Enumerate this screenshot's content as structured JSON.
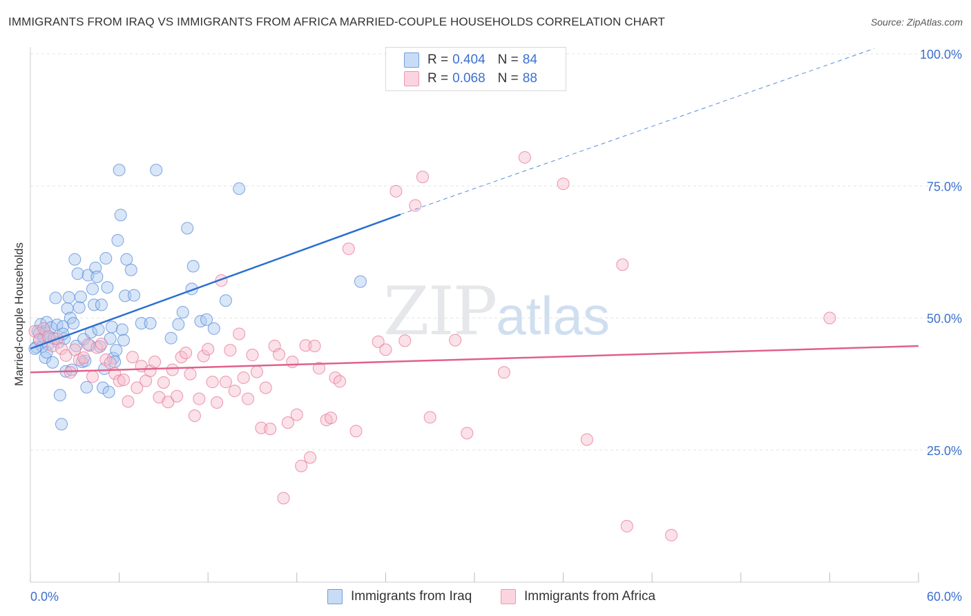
{
  "title": "IMMIGRANTS FROM IRAQ VS IMMIGRANTS FROM AFRICA MARRIED-COUPLE HOUSEHOLDS CORRELATION CHART",
  "source": "Source: ZipAtlas.com",
  "watermark": {
    "zip": "ZIP",
    "atlas": "atlas"
  },
  "legend": {
    "rows": [
      {
        "r_label": "R =",
        "r_value": "0.404",
        "n_label": "N =",
        "n_value": "84",
        "color": "#a9c8f0"
      },
      {
        "r_label": "R =",
        "r_value": "0.068",
        "n_label": "N =",
        "n_value": "88",
        "color": "#f7bccd"
      }
    ]
  },
  "chart_data": {
    "type": "scatter",
    "title": "IMMIGRANTS FROM IRAQ VS IMMIGRANTS FROM AFRICA MARRIED-COUPLE HOUSEHOLDS CORRELATION CHART",
    "xlabel": "",
    "ylabel": "Married-couple Households",
    "xlim": [
      0,
      60
    ],
    "ylim": [
      0,
      100
    ],
    "x_tick_labels": [
      "0.0%",
      "60.0%"
    ],
    "y_tick_labels": [
      "25.0%",
      "50.0%",
      "75.0%",
      "100.0%"
    ],
    "y_ticks": [
      25,
      50,
      75,
      100
    ],
    "grid": true,
    "series": [
      {
        "name": "Immigrants from Iraq",
        "color": "#5b8fd9",
        "fill": "#a9c8f0",
        "trend": {
          "x": [
            0,
            25
          ],
          "y": [
            44.2,
            69.6
          ],
          "dashed_to": {
            "x": 57,
            "y": 101.0
          },
          "color": "#2a6fd1"
        },
        "points": [
          [
            0.4,
            44.5
          ],
          [
            0.5,
            47.5
          ],
          [
            0.6,
            45.8
          ],
          [
            0.7,
            48.8
          ],
          [
            0.8,
            44.6
          ],
          [
            0.9,
            46.4
          ],
          [
            1.0,
            47.5
          ],
          [
            1.0,
            42.5
          ],
          [
            1.1,
            49.2
          ],
          [
            1.2,
            45.0
          ],
          [
            1.3,
            46.4
          ],
          [
            1.4,
            48.2
          ],
          [
            1.5,
            41.6
          ],
          [
            1.6,
            46.1
          ],
          [
            1.7,
            53.8
          ],
          [
            1.8,
            48.7
          ],
          [
            1.9,
            45.4
          ],
          [
            2.0,
            35.4
          ],
          [
            2.1,
            29.9
          ],
          [
            2.2,
            48.4
          ],
          [
            2.3,
            46.1
          ],
          [
            2.4,
            39.9
          ],
          [
            2.5,
            51.8
          ],
          [
            2.6,
            53.9
          ],
          [
            2.7,
            50.0
          ],
          [
            2.8,
            40.2
          ],
          [
            2.9,
            49.0
          ],
          [
            3.0,
            61.1
          ],
          [
            3.1,
            44.7
          ],
          [
            3.2,
            58.4
          ],
          [
            3.3,
            52.0
          ],
          [
            3.4,
            54.0
          ],
          [
            3.5,
            41.7
          ],
          [
            3.6,
            46.0
          ],
          [
            3.7,
            41.9
          ],
          [
            3.8,
            36.9
          ],
          [
            3.9,
            58.1
          ],
          [
            4.0,
            44.8
          ],
          [
            4.1,
            47.3
          ],
          [
            4.2,
            55.5
          ],
          [
            4.3,
            52.5
          ],
          [
            4.4,
            59.5
          ],
          [
            4.5,
            57.8
          ],
          [
            4.6,
            47.8
          ],
          [
            4.7,
            44.6
          ],
          [
            4.8,
            52.5
          ],
          [
            4.9,
            36.8
          ],
          [
            5.0,
            40.4
          ],
          [
            5.1,
            61.3
          ],
          [
            5.2,
            55.8
          ],
          [
            5.3,
            36.0
          ],
          [
            5.4,
            46.1
          ],
          [
            5.5,
            48.3
          ],
          [
            5.6,
            42.4
          ],
          [
            5.7,
            41.7
          ],
          [
            5.8,
            43.9
          ],
          [
            5.9,
            64.7
          ],
          [
            6.0,
            78.0
          ],
          [
            6.1,
            69.5
          ],
          [
            6.2,
            47.8
          ],
          [
            6.3,
            45.8
          ],
          [
            6.4,
            54.2
          ],
          [
            6.5,
            61.1
          ],
          [
            6.8,
            59.1
          ],
          [
            7.0,
            54.3
          ],
          [
            7.5,
            49.0
          ],
          [
            8.1,
            49.0
          ],
          [
            8.5,
            78.0
          ],
          [
            9.5,
            46.2
          ],
          [
            10.0,
            48.8
          ],
          [
            10.3,
            51.1
          ],
          [
            10.6,
            67.0
          ],
          [
            10.9,
            55.5
          ],
          [
            11.0,
            59.8
          ],
          [
            11.5,
            49.4
          ],
          [
            11.9,
            49.7
          ],
          [
            12.4,
            48.0
          ],
          [
            13.2,
            53.3
          ],
          [
            14.1,
            74.5
          ],
          [
            22.3,
            56.9
          ],
          [
            0.3,
            44.2
          ],
          [
            0.6,
            47.1
          ],
          [
            1.1,
            43.5
          ],
          [
            2.2,
            47.0
          ]
        ]
      },
      {
        "name": "Immigrants from Africa",
        "color": "#e57a9c",
        "fill": "#f7bccd",
        "trend": {
          "x": [
            0,
            60
          ],
          "y": [
            39.7,
            44.7
          ],
          "color": "#e0608b"
        },
        "points": [
          [
            0.3,
            47.5
          ],
          [
            0.6,
            45.9
          ],
          [
            0.9,
            48.0
          ],
          [
            1.2,
            46.5
          ],
          [
            1.5,
            44.7
          ],
          [
            1.8,
            46.1
          ],
          [
            2.1,
            44.2
          ],
          [
            2.4,
            42.9
          ],
          [
            2.7,
            39.7
          ],
          [
            3.0,
            44.0
          ],
          [
            3.3,
            42.1
          ],
          [
            3.6,
            42.5
          ],
          [
            3.9,
            45.0
          ],
          [
            4.2,
            38.9
          ],
          [
            4.5,
            44.4
          ],
          [
            4.8,
            45.1
          ],
          [
            5.1,
            42.1
          ],
          [
            5.4,
            41.5
          ],
          [
            5.7,
            39.5
          ],
          [
            6.0,
            38.1
          ],
          [
            6.3,
            38.3
          ],
          [
            6.6,
            34.2
          ],
          [
            6.9,
            42.6
          ],
          [
            7.2,
            36.8
          ],
          [
            7.5,
            40.9
          ],
          [
            7.8,
            38.1
          ],
          [
            8.1,
            40.0
          ],
          [
            8.4,
            41.7
          ],
          [
            8.7,
            35.0
          ],
          [
            9.0,
            37.8
          ],
          [
            9.3,
            34.1
          ],
          [
            9.6,
            40.2
          ],
          [
            9.9,
            35.2
          ],
          [
            10.2,
            42.6
          ],
          [
            10.5,
            43.4
          ],
          [
            10.8,
            39.4
          ],
          [
            11.1,
            31.5
          ],
          [
            11.4,
            34.7
          ],
          [
            11.7,
            42.8
          ],
          [
            12.0,
            44.1
          ],
          [
            12.3,
            37.9
          ],
          [
            12.6,
            34.0
          ],
          [
            12.9,
            57.1
          ],
          [
            13.2,
            37.9
          ],
          [
            13.5,
            43.9
          ],
          [
            13.8,
            36.2
          ],
          [
            14.1,
            47.0
          ],
          [
            14.4,
            38.7
          ],
          [
            14.7,
            34.7
          ],
          [
            15.0,
            43.0
          ],
          [
            15.3,
            39.8
          ],
          [
            15.6,
            29.2
          ],
          [
            15.9,
            36.8
          ],
          [
            16.2,
            29.0
          ],
          [
            16.5,
            44.7
          ],
          [
            16.8,
            43.1
          ],
          [
            17.1,
            15.9
          ],
          [
            17.4,
            30.2
          ],
          [
            17.7,
            41.7
          ],
          [
            18.0,
            31.7
          ],
          [
            18.3,
            22.0
          ],
          [
            18.6,
            44.8
          ],
          [
            18.9,
            23.6
          ],
          [
            19.2,
            44.7
          ],
          [
            19.5,
            40.5
          ],
          [
            20.0,
            30.7
          ],
          [
            20.3,
            31.1
          ],
          [
            20.6,
            38.7
          ],
          [
            20.9,
            38.0
          ],
          [
            21.5,
            63.1
          ],
          [
            22.0,
            28.6
          ],
          [
            23.5,
            45.5
          ],
          [
            24.0,
            44.0
          ],
          [
            24.7,
            74.0
          ],
          [
            25.3,
            45.7
          ],
          [
            26.0,
            71.3
          ],
          [
            26.5,
            76.7
          ],
          [
            27.0,
            31.2
          ],
          [
            28.7,
            45.8
          ],
          [
            29.5,
            28.2
          ],
          [
            32.0,
            39.7
          ],
          [
            33.4,
            80.4
          ],
          [
            36.0,
            75.4
          ],
          [
            37.6,
            27.0
          ],
          [
            40.0,
            60.1
          ],
          [
            40.3,
            10.6
          ],
          [
            43.3,
            8.9
          ],
          [
            54.0,
            50.0
          ]
        ]
      }
    ]
  }
}
